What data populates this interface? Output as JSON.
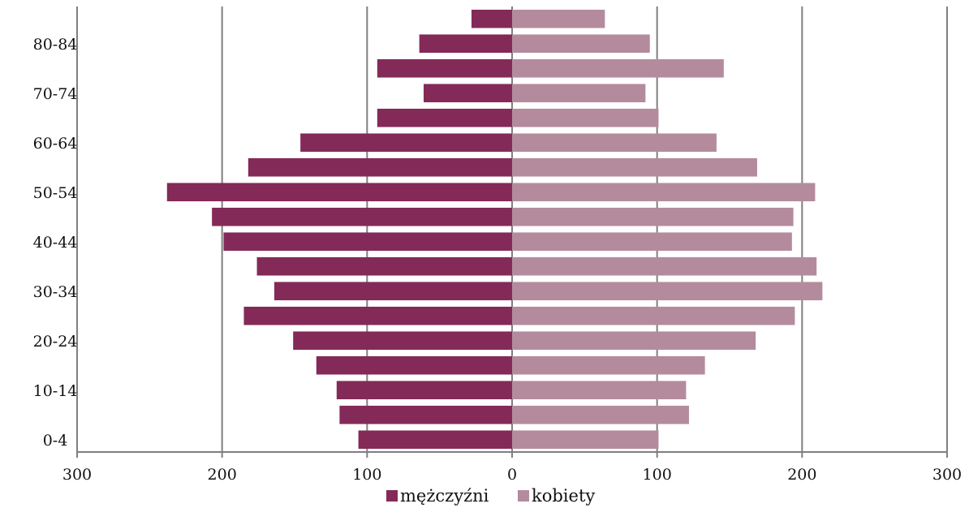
{
  "chart_data": {
    "type": "bar",
    "orientation": "horizontal",
    "layout": "population-pyramid",
    "title": "",
    "xlabel": "",
    "ylabel": "",
    "xlim": [
      -300,
      300
    ],
    "x_ticks": [
      -300,
      -200,
      -100,
      0,
      100,
      200,
      300
    ],
    "x_tick_labels": [
      "300",
      "200",
      "100",
      "0",
      "100",
      "200",
      "300"
    ],
    "categories": [
      "0-4",
      "5-9",
      "10-14",
      "15-19",
      "20-24",
      "25-29",
      "30-34",
      "35-39",
      "40-44",
      "45-49",
      "50-54",
      "55-59",
      "60-64",
      "65-69",
      "70-74",
      "75-79",
      "80-84",
      "85+"
    ],
    "category_labels_shown": [
      "0-4",
      "10-14",
      "20-24",
      "30-34",
      "40-44",
      "50-54",
      "60-64",
      "70-74",
      "80-84"
    ],
    "grid": "vertical lines at x ticks",
    "legend_position": "bottom",
    "series": [
      {
        "name": "mężczyźni",
        "side": "left",
        "color": "#832a58",
        "values": [
          106,
          119,
          121,
          135,
          151,
          185,
          164,
          176,
          199,
          207,
          238,
          182,
          146,
          93,
          61,
          93,
          64,
          28
        ]
      },
      {
        "name": "kobiety",
        "side": "right",
        "color": "#b48b9d",
        "values": [
          101,
          122,
          120,
          133,
          168,
          195,
          214,
          210,
          193,
          194,
          209,
          169,
          141,
          101,
          92,
          146,
          95,
          64
        ]
      }
    ]
  }
}
